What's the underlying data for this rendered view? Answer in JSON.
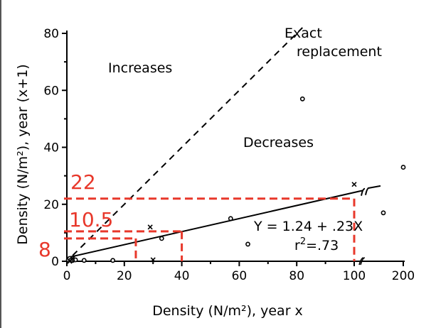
{
  "chart_data": {
    "type": "scatter",
    "title": "",
    "xlabel": "Density (N/m²), year x",
    "ylabel": "Density (N/m²), year (x+1)",
    "xlim": [
      0,
      200
    ],
    "ylim": [
      0,
      80
    ],
    "x_axis_break": [
      100,
      200
    ],
    "x_ticks": [
      0,
      20,
      40,
      60,
      80,
      100,
      200
    ],
    "y_ticks": [
      0,
      20,
      40,
      60,
      80
    ],
    "grid": false,
    "series": [
      {
        "marker": "circle",
        "points": [
          {
            "x": 0.5,
            "y": 0.5
          },
          {
            "x": 1,
            "y": 1
          },
          {
            "x": 1.5,
            "y": 0.5
          },
          {
            "x": 2,
            "y": 0.3
          },
          {
            "x": 2.5,
            "y": 0.5
          },
          {
            "x": 3,
            "y": 0.5
          },
          {
            "x": 6,
            "y": 0.3
          },
          {
            "x": 16,
            "y": 0.3
          },
          {
            "x": 33,
            "y": 8
          },
          {
            "x": 57,
            "y": 15
          },
          {
            "x": 63,
            "y": 6
          },
          {
            "x": 82,
            "y": 57
          },
          {
            "x": 150,
            "y": 17
          },
          {
            "x": 200,
            "y": 33
          }
        ]
      },
      {
        "marker": "x",
        "points": [
          {
            "x": 1,
            "y": 0
          },
          {
            "x": 2,
            "y": 1
          },
          {
            "x": 29,
            "y": 12
          },
          {
            "x": 30,
            "y": 0.5
          },
          {
            "x": 100,
            "y": 27
          }
        ]
      }
    ],
    "regression": {
      "intercept": 1.24,
      "slope": 0.23
    },
    "reference_line": {
      "slope": 1,
      "intercept": 0
    },
    "annotations": {
      "increases": "Increases",
      "decreases": "Decreases",
      "exact_line1": "Exact",
      "exact_line2": "replacement",
      "equation": "Y = 1.24 + .23X",
      "r2_prefix": "r",
      "r2_sup": "2",
      "r2_suffix": "=.73"
    },
    "red_guides": [
      {
        "label": "8",
        "x": 24,
        "y": 8
      },
      {
        "label": "10.5",
        "x": 40,
        "y": 10.5
      },
      {
        "label": "22",
        "x": 100,
        "y": 22
      }
    ],
    "colors": {
      "guide": "#e8382b",
      "ink": "#000000"
    }
  }
}
